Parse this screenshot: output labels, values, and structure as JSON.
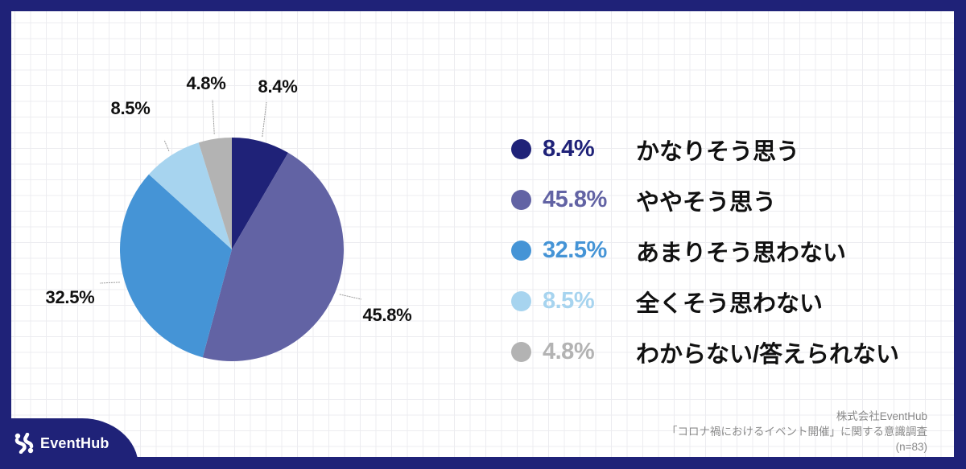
{
  "chart_data": {
    "type": "pie",
    "title": "",
    "categories": [
      "かなりそう思う",
      "ややそう思う",
      "あまりそう思わない",
      "全くそう思わない",
      "わからない/答えられない"
    ],
    "values": [
      8.4,
      45.8,
      32.5,
      8.5,
      4.8
    ],
    "value_labels": [
      "8.4%",
      "45.8%",
      "32.5%",
      "8.5%",
      "4.8%"
    ],
    "colors": [
      "#1f2278",
      "#6263a4",
      "#4594d6",
      "#a7d4ef",
      "#b3b3b3"
    ],
    "start_angle": "12 o'clock, clockwise",
    "legend_position": "right",
    "sample_size": "n=83"
  },
  "legend": [
    {
      "pct": "8.4%",
      "label": "かなりそう思う",
      "color": "#1f2278"
    },
    {
      "pct": "45.8%",
      "label": "ややそう思う",
      "color": "#6263a4"
    },
    {
      "pct": "32.5%",
      "label": "あまりそう思わない",
      "color": "#4594d6"
    },
    {
      "pct": "8.5%",
      "label": "全くそう思わない",
      "color": "#a7d4ef"
    },
    {
      "pct": "4.8%",
      "label": "わからない/答えられない",
      "color": "#b3b3b3"
    }
  ],
  "pie_labels": [
    "8.4%",
    "45.8%",
    "32.5%",
    "8.5%",
    "4.8%"
  ],
  "source": {
    "company": "株式会社EventHub",
    "survey": "「コロナ禍におけるイベント開催」に関する意識調査",
    "sample": "(n=83)"
  },
  "brand": {
    "name": "EventHub",
    "color": "#1f2278"
  }
}
